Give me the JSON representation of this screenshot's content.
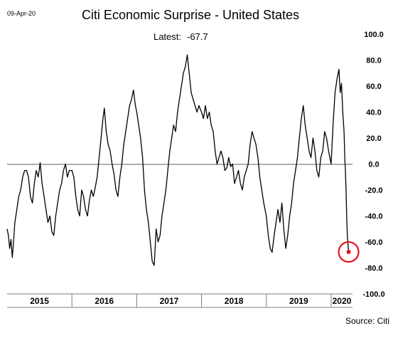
{
  "header": {
    "date": "09-Apr-20",
    "title": "Citi Economic Surprise - United States",
    "latest_label": "Latest:",
    "latest_value": "-67.7"
  },
  "footer": {
    "source": "Source: Citi"
  },
  "colors": {
    "line": "#000000",
    "zero_line": "#7f7f7f",
    "highlight": "#e0151b"
  },
  "chart_data": {
    "type": "line",
    "title": "Citi Economic Surprise - United States",
    "xlabel": "",
    "ylabel": "",
    "x_range": [
      2015.0,
      2020.33
    ],
    "ylim": [
      -100,
      100
    ],
    "y_ticks": [
      "100.0",
      "80.0",
      "60.0",
      "40.0",
      "20.0",
      "0.0",
      "-20.0",
      "-40.0",
      "-60.0",
      "-80.0",
      "-100.0"
    ],
    "x_tick_labels": [
      "2015",
      "2016",
      "2017",
      "2018",
      "2019",
      "2020"
    ],
    "grid": false,
    "latest_point": {
      "x": 2020.27,
      "y": -67.7
    },
    "series": [
      {
        "values": [
          [
            2015.0,
            -50
          ],
          [
            2015.02,
            -55
          ],
          [
            2015.04,
            -65
          ],
          [
            2015.06,
            -58
          ],
          [
            2015.08,
            -72
          ],
          [
            2015.1,
            -60
          ],
          [
            2015.12,
            -45
          ],
          [
            2015.15,
            -35
          ],
          [
            2015.18,
            -25
          ],
          [
            2015.21,
            -20
          ],
          [
            2015.24,
            -10
          ],
          [
            2015.27,
            -5
          ],
          [
            2015.3,
            -5
          ],
          [
            2015.33,
            -10
          ],
          [
            2015.36,
            -25
          ],
          [
            2015.39,
            -30
          ],
          [
            2015.42,
            -15
          ],
          [
            2015.45,
            -5
          ],
          [
            2015.48,
            -10
          ],
          [
            2015.51,
            1
          ],
          [
            2015.54,
            -15
          ],
          [
            2015.57,
            -25
          ],
          [
            2015.6,
            -35
          ],
          [
            2015.63,
            -45
          ],
          [
            2015.66,
            -40
          ],
          [
            2015.69,
            -52
          ],
          [
            2015.72,
            -55
          ],
          [
            2015.75,
            -40
          ],
          [
            2015.78,
            -30
          ],
          [
            2015.81,
            -20
          ],
          [
            2015.84,
            -15
          ],
          [
            2015.87,
            -5
          ],
          [
            2015.9,
            0
          ],
          [
            2015.93,
            -10
          ],
          [
            2015.96,
            -5
          ],
          [
            2016.0,
            -5
          ],
          [
            2016.03,
            -10
          ],
          [
            2016.06,
            -25
          ],
          [
            2016.09,
            -35
          ],
          [
            2016.12,
            -40
          ],
          [
            2016.15,
            -20
          ],
          [
            2016.18,
            -25
          ],
          [
            2016.21,
            -35
          ],
          [
            2016.24,
            -40
          ],
          [
            2016.27,
            -28
          ],
          [
            2016.3,
            -20
          ],
          [
            2016.33,
            -25
          ],
          [
            2016.36,
            -18
          ],
          [
            2016.39,
            -10
          ],
          [
            2016.42,
            5
          ],
          [
            2016.45,
            20
          ],
          [
            2016.48,
            35
          ],
          [
            2016.5,
            43
          ],
          [
            2016.53,
            25
          ],
          [
            2016.56,
            15
          ],
          [
            2016.59,
            10
          ],
          [
            2016.62,
            0
          ],
          [
            2016.65,
            -8
          ],
          [
            2016.68,
            -20
          ],
          [
            2016.71,
            -25
          ],
          [
            2016.74,
            -10
          ],
          [
            2016.77,
            0
          ],
          [
            2016.8,
            15
          ],
          [
            2016.83,
            25
          ],
          [
            2016.86,
            35
          ],
          [
            2016.89,
            45
          ],
          [
            2016.92,
            50
          ],
          [
            2016.95,
            57
          ],
          [
            2016.98,
            45
          ],
          [
            2017.0,
            40
          ],
          [
            2017.03,
            30
          ],
          [
            2017.06,
            20
          ],
          [
            2017.09,
            5
          ],
          [
            2017.12,
            -20
          ],
          [
            2017.15,
            -35
          ],
          [
            2017.18,
            -45
          ],
          [
            2017.21,
            -60
          ],
          [
            2017.24,
            -75
          ],
          [
            2017.27,
            -78
          ],
          [
            2017.3,
            -50
          ],
          [
            2017.33,
            -60
          ],
          [
            2017.36,
            -55
          ],
          [
            2017.39,
            -40
          ],
          [
            2017.42,
            -30
          ],
          [
            2017.45,
            -20
          ],
          [
            2017.48,
            -5
          ],
          [
            2017.51,
            10
          ],
          [
            2017.54,
            20
          ],
          [
            2017.57,
            30
          ],
          [
            2017.6,
            25
          ],
          [
            2017.63,
            40
          ],
          [
            2017.66,
            50
          ],
          [
            2017.69,
            60
          ],
          [
            2017.72,
            70
          ],
          [
            2017.75,
            75
          ],
          [
            2017.78,
            84
          ],
          [
            2017.81,
            70
          ],
          [
            2017.84,
            55
          ],
          [
            2017.87,
            50
          ],
          [
            2017.9,
            45
          ],
          [
            2017.93,
            40
          ],
          [
            2017.96,
            45
          ],
          [
            2018.0,
            40
          ],
          [
            2018.03,
            35
          ],
          [
            2018.06,
            45
          ],
          [
            2018.09,
            35
          ],
          [
            2018.12,
            40
          ],
          [
            2018.15,
            30
          ],
          [
            2018.18,
            25
          ],
          [
            2018.21,
            10
          ],
          [
            2018.24,
            0
          ],
          [
            2018.27,
            5
          ],
          [
            2018.3,
            10
          ],
          [
            2018.33,
            5
          ],
          [
            2018.36,
            -5
          ],
          [
            2018.39,
            -3
          ],
          [
            2018.42,
            5
          ],
          [
            2018.45,
            -2
          ],
          [
            2018.48,
            0
          ],
          [
            2018.51,
            -15
          ],
          [
            2018.54,
            -10
          ],
          [
            2018.57,
            -5
          ],
          [
            2018.6,
            -15
          ],
          [
            2018.63,
            -20
          ],
          [
            2018.66,
            -10
          ],
          [
            2018.69,
            -5
          ],
          [
            2018.72,
            0
          ],
          [
            2018.75,
            15
          ],
          [
            2018.78,
            25
          ],
          [
            2018.81,
            20
          ],
          [
            2018.84,
            15
          ],
          [
            2018.87,
            5
          ],
          [
            2018.9,
            -10
          ],
          [
            2018.93,
            -20
          ],
          [
            2018.96,
            -30
          ],
          [
            2019.0,
            -40
          ],
          [
            2019.03,
            -55
          ],
          [
            2019.06,
            -65
          ],
          [
            2019.09,
            -68
          ],
          [
            2019.12,
            -55
          ],
          [
            2019.15,
            -45
          ],
          [
            2019.18,
            -35
          ],
          [
            2019.21,
            -45
          ],
          [
            2019.24,
            -30
          ],
          [
            2019.27,
            -50
          ],
          [
            2019.3,
            -65
          ],
          [
            2019.33,
            -55
          ],
          [
            2019.36,
            -40
          ],
          [
            2019.39,
            -30
          ],
          [
            2019.42,
            -15
          ],
          [
            2019.45,
            -5
          ],
          [
            2019.48,
            5
          ],
          [
            2019.51,
            20
          ],
          [
            2019.54,
            35
          ],
          [
            2019.57,
            45
          ],
          [
            2019.6,
            30
          ],
          [
            2019.63,
            20
          ],
          [
            2019.66,
            10
          ],
          [
            2019.69,
            5
          ],
          [
            2019.72,
            20
          ],
          [
            2019.75,
            10
          ],
          [
            2019.78,
            -5
          ],
          [
            2019.81,
            -10
          ],
          [
            2019.84,
            5
          ],
          [
            2019.87,
            10
          ],
          [
            2019.9,
            25
          ],
          [
            2019.93,
            20
          ],
          [
            2019.96,
            10
          ],
          [
            2020.0,
            0
          ],
          [
            2020.03,
            30
          ],
          [
            2020.06,
            55
          ],
          [
            2020.09,
            65
          ],
          [
            2020.12,
            73
          ],
          [
            2020.14,
            55
          ],
          [
            2020.16,
            62
          ],
          [
            2020.18,
            40
          ],
          [
            2020.2,
            25
          ],
          [
            2020.21,
            5
          ],
          [
            2020.22,
            -5
          ],
          [
            2020.23,
            -20
          ],
          [
            2020.24,
            -40
          ],
          [
            2020.25,
            -55
          ],
          [
            2020.27,
            -67.7
          ]
        ]
      }
    ]
  }
}
